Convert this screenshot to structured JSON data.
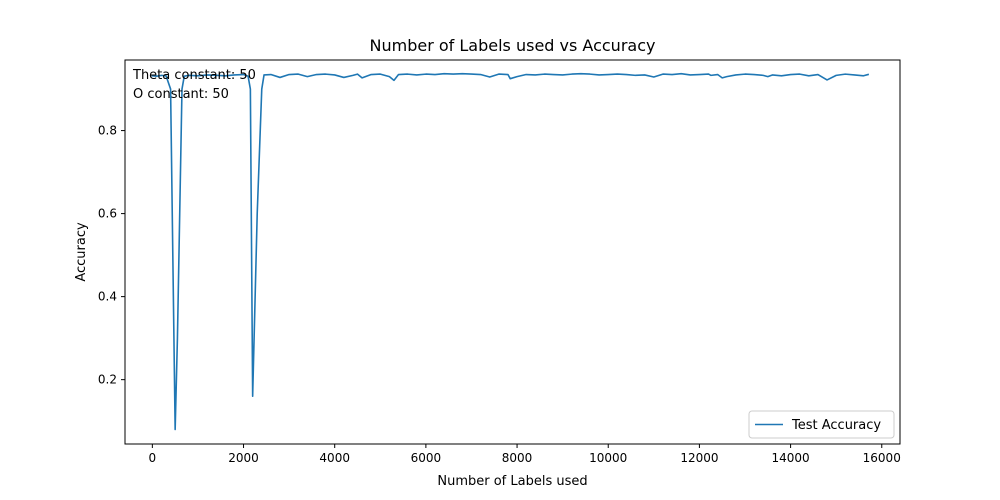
{
  "chart_data": {
    "type": "line",
    "title": "Number of Labels used vs Accuracy",
    "xlabel": "Number of Labels used",
    "ylabel": "Accuracy",
    "xlim": [
      -600,
      16400
    ],
    "ylim": [
      0.045,
      0.97
    ],
    "x_ticks": [
      0,
      2000,
      4000,
      6000,
      8000,
      10000,
      12000,
      14000,
      16000
    ],
    "x_tick_labels": [
      "0",
      "2000",
      "4000",
      "6000",
      "8000",
      "10000",
      "12000",
      "14000",
      "16000"
    ],
    "y_ticks": [
      0.2,
      0.4,
      0.6,
      0.8
    ],
    "y_tick_labels": [
      "0.2",
      "0.4",
      "0.6",
      "0.8"
    ],
    "grid": false,
    "legend_position": "lower-right",
    "color": "#1f77b4",
    "annotations": [
      "Theta constant: 50",
      "O constant: 50"
    ],
    "series": [
      {
        "name": "Test Accuracy",
        "x": [
          0,
          100,
          200,
          300,
          400,
          500,
          550,
          650,
          700,
          800,
          1000,
          1200,
          1400,
          1600,
          1800,
          2000,
          2050,
          2100,
          2150,
          2200,
          2300,
          2400,
          2450,
          2600,
          2800,
          3000,
          3200,
          3400,
          3600,
          3800,
          4000,
          4200,
          4400,
          4500,
          4600,
          4800,
          5000,
          5200,
          5300,
          5400,
          5600,
          5800,
          6000,
          6200,
          6400,
          6600,
          6800,
          7000,
          7200,
          7400,
          7600,
          7800,
          7850,
          8000,
          8200,
          8400,
          8600,
          8800,
          9000,
          9200,
          9400,
          9600,
          9800,
          10000,
          10200,
          10400,
          10600,
          10800,
          11000,
          11200,
          11400,
          11600,
          11800,
          12000,
          12200,
          12250,
          12400,
          12500,
          12600,
          12800,
          13000,
          13200,
          13400,
          13500,
          13600,
          13800,
          14000,
          14200,
          14400,
          14600,
          14800,
          15000,
          15200,
          15400,
          15600,
          15700
        ],
        "values": [
          0.932,
          0.931,
          0.933,
          0.932,
          0.9,
          0.08,
          0.3,
          0.9,
          0.931,
          0.933,
          0.932,
          0.934,
          0.933,
          0.932,
          0.934,
          0.935,
          0.933,
          0.931,
          0.9,
          0.16,
          0.6,
          0.9,
          0.934,
          0.935,
          0.928,
          0.935,
          0.936,
          0.93,
          0.935,
          0.936,
          0.934,
          0.928,
          0.933,
          0.936,
          0.927,
          0.935,
          0.936,
          0.93,
          0.921,
          0.935,
          0.936,
          0.934,
          0.936,
          0.935,
          0.937,
          0.936,
          0.937,
          0.936,
          0.935,
          0.929,
          0.936,
          0.935,
          0.925,
          0.93,
          0.935,
          0.934,
          0.936,
          0.935,
          0.934,
          0.936,
          0.937,
          0.936,
          0.934,
          0.935,
          0.936,
          0.935,
          0.933,
          0.934,
          0.929,
          0.936,
          0.935,
          0.937,
          0.934,
          0.935,
          0.936,
          0.933,
          0.935,
          0.927,
          0.93,
          0.934,
          0.936,
          0.935,
          0.933,
          0.93,
          0.934,
          0.932,
          0.935,
          0.936,
          0.932,
          0.935,
          0.922,
          0.933,
          0.936,
          0.934,
          0.932,
          0.935
        ]
      }
    ]
  }
}
